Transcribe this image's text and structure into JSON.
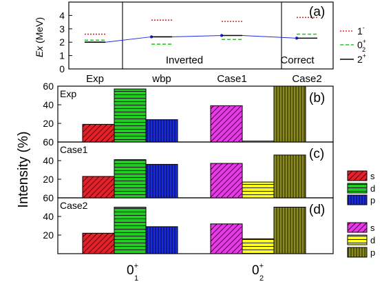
{
  "chart_data": [
    {
      "type": "line",
      "panel_label": "(a)",
      "ylabel": "Ex (MeV)",
      "ylabel_italic": "Ex",
      "ylabel_unit": "(MeV)",
      "ylim": [
        0,
        5
      ],
      "yticks": [
        0,
        1,
        2,
        3,
        4
      ],
      "categories": [
        "Exp",
        "wbp",
        "Case1",
        "Case2"
      ],
      "series": [
        {
          "name": "1-",
          "name_base": "1",
          "name_sup": "-",
          "style": "dotted",
          "color": "#e8202a",
          "values": [
            2.6,
            3.65,
            3.55,
            3.85
          ]
        },
        {
          "name": "0+2",
          "name_base": "0",
          "name_sup": "+",
          "name_sub": "2",
          "style": "dashed",
          "color": "#22cc22",
          "values": [
            2.15,
            1.85,
            2.2,
            2.6
          ]
        },
        {
          "name": "2+",
          "name_base": "2",
          "name_sup": "+",
          "style": "solid",
          "color": "#000000",
          "values": [
            2.0,
            2.4,
            2.5,
            2.3
          ]
        }
      ],
      "connector_color": "#1a2adf",
      "annotations": {
        "inverted": "Inverted",
        "correct": "Correct"
      }
    },
    {
      "type": "bar",
      "panel_label": "(b)",
      "name": "Exp",
      "ylim": [
        0,
        60
      ],
      "yticks": [
        20,
        40,
        60
      ],
      "groups": [
        "0+1",
        "0+2"
      ],
      "series_labels": [
        "s",
        "d",
        "p"
      ],
      "values": [
        [
          19,
          57,
          24
        ],
        [
          39,
          1,
          60
        ]
      ]
    },
    {
      "type": "bar",
      "panel_label": "(c)",
      "name": "Case1",
      "ylim": [
        0,
        60
      ],
      "yticks": [
        20,
        40,
        60
      ],
      "groups": [
        "0+1",
        "0+2"
      ],
      "series_labels": [
        "s",
        "d",
        "p"
      ],
      "values": [
        [
          23,
          41,
          36
        ],
        [
          37,
          17,
          46
        ]
      ]
    },
    {
      "type": "bar",
      "panel_label": "(d)",
      "name": "Case2",
      "ylim": [
        0,
        60
      ],
      "yticks": [
        20,
        40,
        60
      ],
      "groups": [
        "0+1",
        "0+2"
      ],
      "series_labels": [
        "s",
        "d",
        "p"
      ],
      "values": [
        [
          22,
          50,
          29
        ],
        [
          32,
          16,
          50
        ]
      ]
    }
  ],
  "shared": {
    "ylabel": "Intensity (%)",
    "xtick_labels": [
      {
        "name": "0+1",
        "base": "0",
        "sup": "+",
        "sub": "1"
      },
      {
        "name": "0+2",
        "base": "0",
        "sup": "+",
        "sub": "2"
      }
    ]
  },
  "colors": {
    "group1": [
      "#e8202a",
      "#22cc22",
      "#1a2adf"
    ],
    "group2": [
      "#e838e8",
      "#ffff22",
      "#8a8a1a"
    ]
  },
  "legend_bottom": {
    "group1": [
      "s",
      "d",
      "p"
    ],
    "group2": [
      "s",
      "d",
      "p"
    ]
  }
}
